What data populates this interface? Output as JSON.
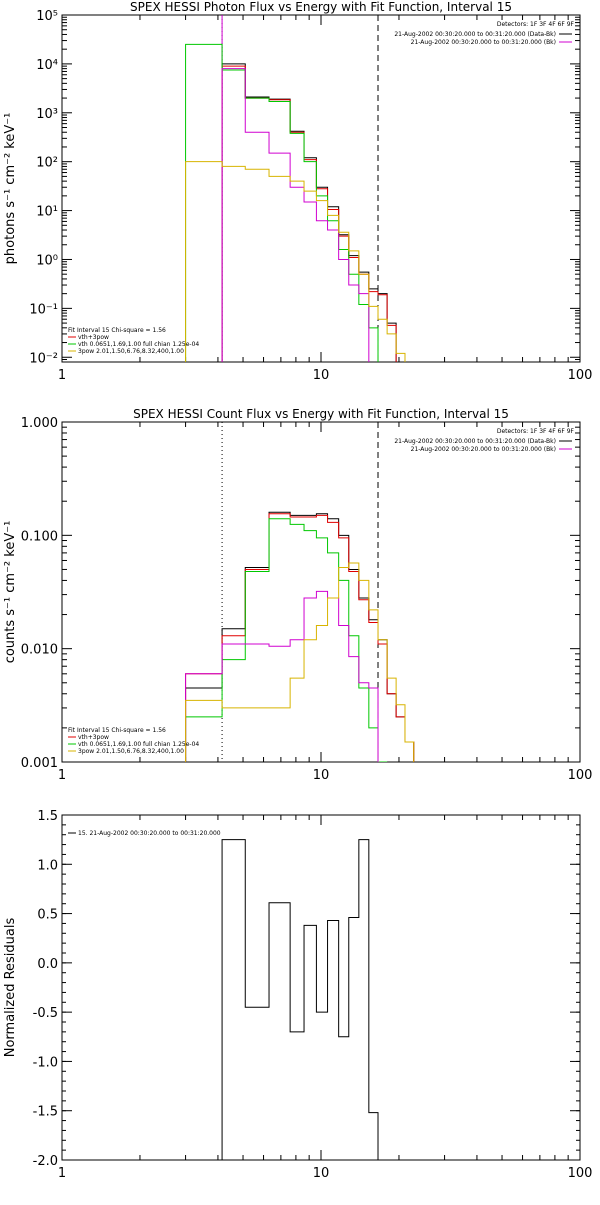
{
  "chart_data": [
    {
      "type": "line",
      "title": "SPEX HESSI Photon Flux vs Energy with Fit Function, Interval 15",
      "xlabel": "",
      "ylabel": "photons s⁻¹ cm⁻² keV⁻¹",
      "xscale": "log",
      "yscale": "log",
      "xlim": [
        1,
        100
      ],
      "ylim": [
        0.008,
        100000
      ],
      "x_ticks": [
        "1",
        "10",
        "100"
      ],
      "y_ticks": [
        "10⁻²",
        "10⁻¹",
        "10⁰",
        "10¹",
        "10²",
        "10³",
        "10⁴",
        "10⁵"
      ],
      "y_tick_values": [
        0.01,
        0.1,
        1,
        10,
        100,
        1000,
        10000,
        100000
      ],
      "vlines": [
        {
          "x": 4.15,
          "style": "dotted",
          "color": "#000000"
        },
        {
          "x": 4.15,
          "style": "solid",
          "color": "#d000d0"
        },
        {
          "x": 16.6,
          "style": "dashed",
          "color": "#000000"
        }
      ],
      "legend_right": {
        "header": "Detectors: 1F 3F 4F 6F 9F",
        "entries": [
          {
            "text": "21-Aug-2002 00:30:20.000 to 00:31:20.000 (Data-Bk)",
            "color": "#000000"
          },
          {
            "text": "21-Aug-2002 00:30:20.000 to 00:31:20.000 (Bk)",
            "color": "#d000d0"
          }
        ]
      },
      "legend_left": {
        "header": "Fit Interval 15   Chi-square = 1.56",
        "entries": [
          {
            "text": "vth+3pow",
            "color": "#e00000"
          },
          {
            "text": "vth 0.0651,1.69,1.00  full chian 1.25e-04",
            "color": "#00c800"
          },
          {
            "text": "3pow 2.01,1.50,6.76,8.32,400,1.00",
            "color": "#d8b400"
          }
        ]
      },
      "bin_edges": [
        3.0,
        4.15,
        5.1,
        6.3,
        7.6,
        8.6,
        9.6,
        10.6,
        11.7,
        12.8,
        14.0,
        15.3,
        16.6,
        18.0,
        19.5,
        21.1
      ],
      "series": [
        {
          "key": "data",
          "color": "#000000",
          "values": [
            null,
            10000,
            2100,
            1900,
            420,
            120,
            30,
            12,
            3.2,
            1.2,
            0.55,
            0.25,
            0.2,
            0.05,
            null
          ]
        },
        {
          "key": "total",
          "color": "#e00000",
          "values": [
            null,
            9000,
            2000,
            1850,
            400,
            110,
            28,
            10.5,
            3.0,
            1.1,
            0.5,
            0.22,
            0.19,
            0.045,
            null
          ]
        },
        {
          "key": "thermal",
          "color": "#00c800",
          "values": [
            25000,
            7500,
            2000,
            1700,
            380,
            100,
            20,
            6.2,
            1.6,
            0.5,
            0.12,
            0.04,
            null,
            null,
            null
          ]
        },
        {
          "key": "bkg",
          "color": "#d000d0",
          "values": [
            null,
            8000,
            400,
            150,
            30,
            15,
            6.2,
            4.0,
            1.0,
            0.3,
            0.2,
            null,
            null,
            null,
            null
          ]
        },
        {
          "key": "powerlaw",
          "color": "#d8b400",
          "values": [
            100,
            80,
            70,
            50,
            40,
            25,
            16,
            8.0,
            3.6,
            1.5,
            0.5,
            0.11,
            0.06,
            0.03,
            0.012
          ]
        }
      ]
    },
    {
      "type": "line",
      "title": "SPEX HESSI Count Flux vs Energy with Fit Function, Interval 15",
      "xlabel": "",
      "ylabel": "counts s⁻¹ cm⁻² keV⁻¹",
      "xscale": "log",
      "yscale": "log",
      "xlim": [
        1,
        100
      ],
      "ylim": [
        0.001,
        1.0
      ],
      "x_ticks": [
        "1",
        "10",
        "100"
      ],
      "y_ticks": [
        "0.001",
        "0.010",
        "0.100",
        "1.000"
      ],
      "y_tick_values": [
        0.001,
        0.01,
        0.1,
        1.0
      ],
      "vlines": [
        {
          "x": 4.15,
          "style": "dotted",
          "color": "#000000"
        },
        {
          "x": 16.6,
          "style": "dashed",
          "color": "#000000"
        }
      ],
      "legend_right": {
        "header": "Detectors: 1F 3F 4F 6F 9F",
        "entries": [
          {
            "text": "21-Aug-2002 00:30:20.000 to 00:31:20.000 (Data-Bk)",
            "color": "#000000"
          },
          {
            "text": "21-Aug-2002 00:30:20.000 to 00:31:20.000 (Bk)",
            "color": "#d000d0"
          }
        ]
      },
      "legend_left": {
        "header": "Fit Interval 15   Chi-square = 1.56",
        "entries": [
          {
            "text": "vth+3pow",
            "color": "#e00000"
          },
          {
            "text": "vth 0.0651,1.69,1.00  full chian 1.25e-04",
            "color": "#00c800"
          },
          {
            "text": "3pow 2.01,1.50,6.76,8.32,400,1.00",
            "color": "#d8b400"
          }
        ]
      },
      "bin_edges": [
        3.0,
        4.15,
        5.1,
        6.3,
        7.6,
        8.6,
        9.6,
        10.6,
        11.7,
        12.8,
        14.0,
        15.3,
        16.6,
        18.0,
        19.5,
        21.1,
        22.8
      ],
      "series": [
        {
          "key": "data",
          "color": "#000000",
          "values": [
            0.0045,
            0.015,
            0.052,
            0.16,
            0.15,
            0.15,
            0.155,
            0.14,
            0.1,
            0.05,
            0.028,
            0.018,
            0.012,
            0.004,
            0.0025,
            0.0015
          ]
        },
        {
          "key": "total",
          "color": "#e00000",
          "values": [
            0.006,
            0.013,
            0.05,
            0.155,
            0.145,
            0.145,
            0.15,
            0.13,
            0.095,
            0.048,
            0.027,
            0.017,
            0.011,
            0.004,
            0.0025,
            0.0015
          ]
        },
        {
          "key": "thermal",
          "color": "#00c800",
          "values": [
            0.0025,
            0.008,
            0.048,
            0.14,
            0.125,
            0.11,
            0.095,
            0.07,
            0.04,
            0.013,
            0.0045,
            0.002,
            0.001,
            null,
            null,
            null
          ]
        },
        {
          "key": "bkg",
          "color": "#d000d0",
          "values": [
            0.006,
            0.011,
            0.011,
            0.0105,
            0.012,
            0.028,
            0.032,
            0.028,
            0.016,
            0.0085,
            0.005,
            0.0045,
            null,
            null,
            null,
            null
          ]
        },
        {
          "key": "powerlaw",
          "color": "#d8b400",
          "values": [
            0.0035,
            0.003,
            0.003,
            0.003,
            0.0055,
            0.012,
            0.016,
            0.028,
            0.052,
            0.057,
            0.04,
            0.022,
            0.012,
            0.0055,
            0.0032,
            0.0015
          ]
        }
      ]
    },
    {
      "type": "line",
      "title": "",
      "xlabel": "",
      "ylabel": "Normalized Residuals",
      "xscale": "log",
      "yscale": "linear",
      "xlim": [
        1,
        100
      ],
      "ylim": [
        -2.0,
        1.5
      ],
      "x_ticks": [
        "1",
        "10",
        "100"
      ],
      "y_ticks": [
        "-2.0",
        "-1.5",
        "-1.0",
        "-0.5",
        "0.0",
        "0.5",
        "1.0",
        "1.5"
      ],
      "y_tick_values": [
        -2.0,
        -1.5,
        -1.0,
        -0.5,
        0.0,
        0.5,
        1.0,
        1.5
      ],
      "legend_left": {
        "header": "",
        "entries": [
          {
            "text": "15. 21-Aug-2002 00:30:20.000 to 00:31:20.000",
            "color": "#000000"
          }
        ]
      },
      "bin_edges": [
        4.15,
        5.1,
        6.3,
        7.6,
        8.6,
        9.6,
        10.6,
        11.7,
        12.8,
        14.0,
        15.3,
        16.6
      ],
      "series": [
        {
          "key": "residuals",
          "color": "#000000",
          "values": [
            1.25,
            -0.45,
            0.61,
            -0.7,
            0.38,
            -0.5,
            0.43,
            -0.75,
            0.46,
            1.25,
            -1.52
          ]
        }
      ]
    }
  ]
}
